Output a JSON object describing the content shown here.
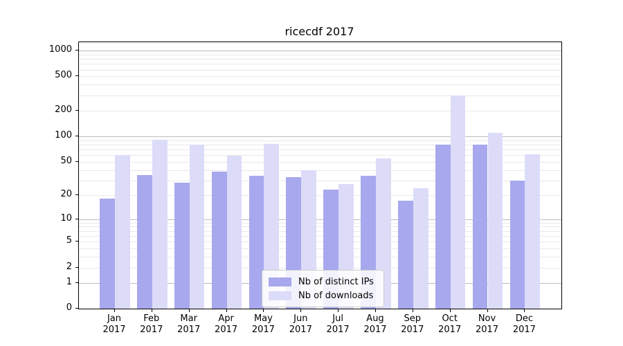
{
  "title": "ricecdf 2017",
  "colors": {
    "distinct_ips": "#a8a8ee",
    "downloads": "#dcdcf9",
    "grid_major": "#bcbcbc",
    "grid_minor": "#e9e9e9",
    "axis": "#000000",
    "legend_border": "#cccccc",
    "background": "#ffffff"
  },
  "legend": {
    "items": [
      {
        "label": "Nb of distinct IPs",
        "color_key": "distinct_ips"
      },
      {
        "label": "Nb of downloads",
        "color_key": "downloads"
      }
    ]
  },
  "chart_data": {
    "type": "bar",
    "title": "ricecdf 2017",
    "categories": [
      "Jan 2017",
      "Feb 2017",
      "Mar 2017",
      "Apr 2017",
      "May 2017",
      "Jun 2017",
      "Jul 2017",
      "Aug 2017",
      "Sep 2017",
      "Oct 2017",
      "Nov 2017",
      "Dec 2017"
    ],
    "series": [
      {
        "name": "Nb of distinct IPs",
        "color_key": "distinct_ips",
        "values": [
          18,
          35,
          28,
          38,
          34,
          33,
          23,
          34,
          17,
          80,
          79,
          30
        ]
      },
      {
        "name": "Nb of downloads",
        "color_key": "downloads",
        "values": [
          60,
          91,
          79,
          59,
          81,
          40,
          27,
          55,
          24,
          300,
          110,
          61
        ]
      }
    ],
    "xlabel": "",
    "ylabel": "",
    "yscale": "log1p",
    "ylim": [
      0,
      1250
    ],
    "y_ticks": [
      0,
      1,
      2,
      5,
      10,
      20,
      50,
      100,
      200,
      500,
      1000
    ],
    "grid": {
      "major": [
        1,
        10,
        100,
        1000
      ],
      "minor": [
        2,
        3,
        4,
        5,
        6,
        7,
        8,
        9,
        20,
        30,
        40,
        50,
        60,
        70,
        80,
        90,
        200,
        300,
        400,
        500,
        600,
        700,
        800,
        900
      ]
    },
    "legend_position": "lower center",
    "bar_layout": "paired: distinct IPs left of center, downloads right of center"
  }
}
